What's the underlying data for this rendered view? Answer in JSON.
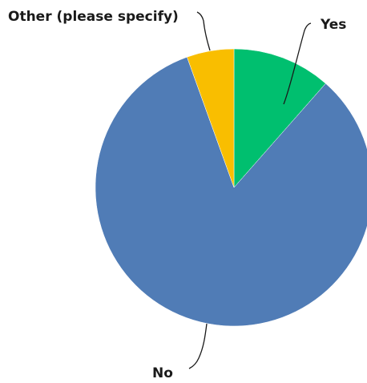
{
  "chart_data": {
    "type": "pie",
    "title": "",
    "start_angle_deg": 0,
    "direction": "clockwise",
    "legend": "none",
    "slices": [
      {
        "label": "Yes",
        "value": 11.5,
        "color": "#00BF6F"
      },
      {
        "label": "No",
        "value": 83.0,
        "color": "#507CB6"
      },
      {
        "label": "Other (please specify)",
        "value": 5.5,
        "color": "#F9BE00"
      }
    ]
  }
}
